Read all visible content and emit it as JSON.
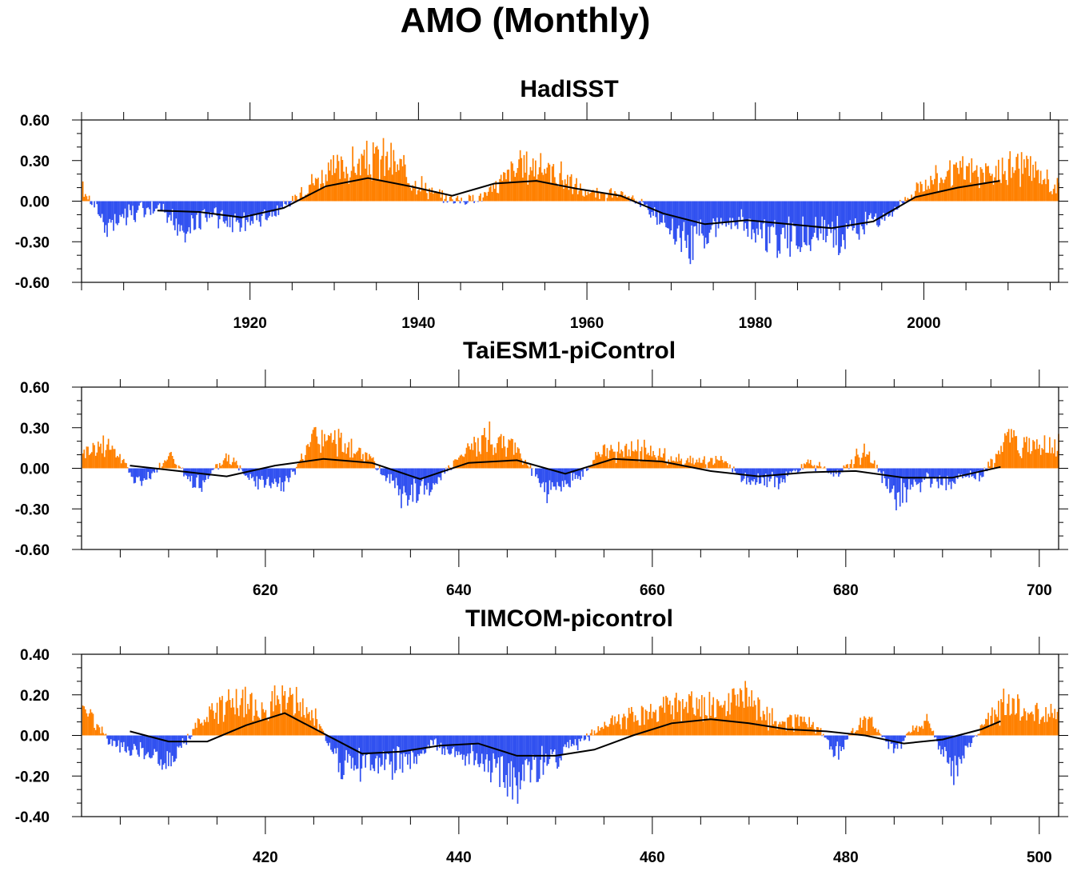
{
  "page": {
    "title": "AMO (Monthly)"
  },
  "colors": {
    "positive": "#ff8000",
    "negative": "#3050f0",
    "smooth": "#000000",
    "frame": "#000000"
  },
  "chart_data": [
    {
      "type": "bar",
      "title": "HadISST",
      "xlabel": "",
      "ylabel": "",
      "xlim": [
        1900,
        2016
      ],
      "ylim": [
        -0.6,
        0.6
      ],
      "yticks": [
        0.6,
        0.3,
        0.0,
        -0.3,
        -0.6
      ],
      "ytick_labels": [
        "0.60",
        "0.30",
        "0.00",
        "-0.30",
        "-0.60"
      ],
      "xticks": [
        1920,
        1940,
        1960,
        1980,
        2000
      ],
      "xtick_labels": [
        "1920",
        "1940",
        "1960",
        "1980",
        "2000"
      ],
      "grid": false,
      "legend": "none",
      "series": [
        {
          "kind": "monthly-anomaly-bars",
          "x": [
            1900,
            1903,
            1906,
            1909,
            1912,
            1915,
            1918,
            1921,
            1924,
            1927,
            1930,
            1933,
            1936,
            1939,
            1942,
            1945,
            1948,
            1951,
            1954,
            1957,
            1960,
            1963,
            1966,
            1969,
            1972,
            1975,
            1978,
            1981,
            1984,
            1987,
            1990,
            1993,
            1996,
            1999,
            2002,
            2005,
            2008,
            2011,
            2014,
            2016
          ],
          "values": [
            0.1,
            -0.2,
            -0.1,
            -0.05,
            -0.25,
            -0.1,
            -0.2,
            -0.15,
            -0.05,
            0.15,
            0.25,
            0.3,
            0.35,
            0.2,
            0.05,
            0.0,
            0.05,
            0.25,
            0.3,
            0.2,
            0.05,
            0.05,
            0.0,
            -0.15,
            -0.35,
            -0.2,
            -0.15,
            -0.3,
            -0.3,
            -0.25,
            -0.3,
            -0.2,
            -0.1,
            0.1,
            0.2,
            0.25,
            0.2,
            0.3,
            0.2,
            0.1
          ]
        },
        {
          "kind": "smoothed-line",
          "x": [
            1909,
            1914,
            1919,
            1924,
            1929,
            1934,
            1939,
            1944,
            1949,
            1954,
            1959,
            1964,
            1969,
            1974,
            1979,
            1984,
            1989,
            1994,
            1999,
            2004,
            2009
          ],
          "values": [
            -0.07,
            -0.08,
            -0.12,
            -0.05,
            0.11,
            0.17,
            0.11,
            0.04,
            0.13,
            0.15,
            0.09,
            0.04,
            -0.09,
            -0.17,
            -0.14,
            -0.17,
            -0.2,
            -0.15,
            0.03,
            0.1,
            0.15
          ]
        }
      ]
    },
    {
      "type": "bar",
      "title": "TaiESM1-piControl",
      "xlabel": "",
      "ylabel": "",
      "xlim": [
        601,
        702
      ],
      "ylim": [
        -0.6,
        0.6
      ],
      "yticks": [
        0.6,
        0.3,
        0.0,
        -0.3,
        -0.6
      ],
      "ytick_labels": [
        "0.60",
        "0.30",
        "0.00",
        "-0.30",
        "-0.60"
      ],
      "xticks": [
        620,
        640,
        660,
        680,
        700
      ],
      "xtick_labels": [
        "620",
        "640",
        "660",
        "680",
        "700"
      ],
      "grid": false,
      "legend": "none",
      "series": [
        {
          "kind": "monthly-anomaly-bars",
          "x": [
            601,
            604,
            607,
            610,
            613,
            616,
            619,
            622,
            625,
            628,
            631,
            634,
            637,
            640,
            643,
            646,
            649,
            652,
            655,
            658,
            661,
            664,
            667,
            670,
            673,
            676,
            679,
            682,
            685,
            688,
            691,
            694,
            697,
            700
          ],
          "values": [
            0.15,
            0.2,
            -0.15,
            0.1,
            -0.15,
            0.1,
            -0.1,
            -0.15,
            0.25,
            0.2,
            0.05,
            -0.2,
            -0.15,
            0.1,
            0.25,
            0.15,
            -0.2,
            -0.1,
            0.15,
            0.15,
            0.1,
            0.05,
            0.05,
            -0.1,
            -0.1,
            0.05,
            -0.05,
            0.15,
            -0.25,
            -0.1,
            -0.1,
            -0.05,
            0.25,
            0.2
          ]
        },
        {
          "kind": "smoothed-line",
          "x": [
            606,
            611,
            616,
            621,
            626,
            631,
            636,
            641,
            646,
            651,
            656,
            661,
            666,
            671,
            676,
            681,
            686,
            691,
            696
          ],
          "values": [
            0.02,
            -0.02,
            -0.06,
            0.02,
            0.07,
            0.04,
            -0.08,
            0.04,
            0.06,
            -0.04,
            0.07,
            0.05,
            -0.02,
            -0.06,
            -0.03,
            -0.02,
            -0.07,
            -0.07,
            0.01
          ]
        }
      ]
    },
    {
      "type": "bar",
      "title": "TIMCOM-picontrol",
      "xlabel": "",
      "ylabel": "",
      "xlim": [
        401,
        502
      ],
      "ylim": [
        -0.4,
        0.4
      ],
      "yticks": [
        0.4,
        0.2,
        0.0,
        -0.2,
        -0.4
      ],
      "ytick_labels": [
        "0.40",
        "0.20",
        "0.00",
        "-0.20",
        "-0.40"
      ],
      "xticks": [
        420,
        440,
        460,
        480,
        500
      ],
      "xtick_labels": [
        "420",
        "440",
        "460",
        "480",
        "500"
      ],
      "grid": false,
      "legend": "none",
      "series": [
        {
          "kind": "monthly-anomaly-bars",
          "x": [
            401,
            404,
            407,
            410,
            413,
            416,
            419,
            422,
            425,
            428,
            431,
            434,
            437,
            440,
            443,
            446,
            449,
            452,
            455,
            458,
            461,
            464,
            467,
            470,
            473,
            476,
            479,
            482,
            485,
            488,
            491,
            494,
            497,
            500
          ],
          "values": [
            0.18,
            -0.05,
            -0.08,
            -0.12,
            0.05,
            0.2,
            0.15,
            0.2,
            0.1,
            -0.2,
            -0.15,
            -0.15,
            -0.05,
            -0.1,
            -0.15,
            -0.25,
            -0.15,
            -0.05,
            0.05,
            0.1,
            0.15,
            0.15,
            0.15,
            0.2,
            0.05,
            0.1,
            -0.1,
            0.1,
            -0.08,
            0.1,
            -0.2,
            0.05,
            0.2,
            0.1
          ]
        },
        {
          "kind": "smoothed-line",
          "x": [
            406,
            410,
            414,
            418,
            422,
            426,
            430,
            434,
            438,
            442,
            446,
            450,
            454,
            458,
            462,
            466,
            470,
            474,
            478,
            482,
            486,
            490,
            494,
            496
          ],
          "values": [
            0.02,
            -0.03,
            -0.03,
            0.05,
            0.11,
            0.01,
            -0.09,
            -0.08,
            -0.05,
            -0.04,
            -0.1,
            -0.1,
            -0.07,
            0.0,
            0.06,
            0.08,
            0.06,
            0.03,
            0.02,
            0.0,
            -0.04,
            -0.02,
            0.03,
            0.07
          ]
        }
      ]
    }
  ]
}
